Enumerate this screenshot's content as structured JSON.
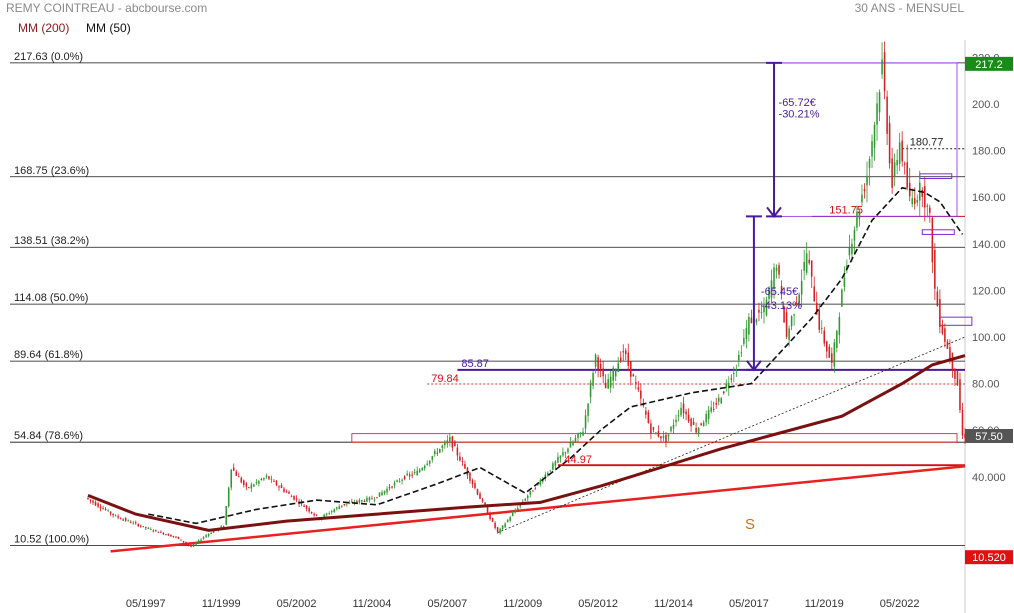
{
  "header": {
    "title": "REMY COINTREAU",
    "source": "abcbourse.com",
    "period": "30 ANS - MENSUEL"
  },
  "legend": [
    {
      "label": "MM (200)",
      "color": "#8b1a1a"
    },
    {
      "label": "MM (50)",
      "color": "#111111"
    }
  ],
  "chart_data": {
    "type": "candlestick",
    "title": "REMY COINTREAU",
    "subtitle": "30 ANS - MENSUEL",
    "ylim": [
      0,
      224
    ],
    "y_ticks": [
      40,
      60,
      80,
      100,
      120,
      140,
      160,
      180,
      200,
      220
    ],
    "y_tick_labels": [
      "40.000",
      "60.00",
      "80.00",
      "100.00",
      "120.00",
      "140.00",
      "160.00",
      "180.00",
      "200.0",
      "220.0"
    ],
    "x_ticks": [
      "05/1997",
      "11/1999",
      "05/2002",
      "11/2004",
      "05/2007",
      "11/2009",
      "05/2012",
      "11/2014",
      "05/2017",
      "11/2019",
      "05/2022"
    ],
    "x_range": [
      "1995-06",
      "2024-07"
    ],
    "price_badges": [
      {
        "value": "217.2",
        "color": "#1a8a1a",
        "y": 217.2
      },
      {
        "value": "57.50",
        "color": "#555555",
        "y": 57.5
      },
      {
        "value": "10.520",
        "color": "#e01010",
        "y": 5.5
      }
    ],
    "fibonacci": [
      {
        "label": "217.63  (0.0%)",
        "value": 217.63
      },
      {
        "label": "168.75  (23.6%)",
        "value": 168.75
      },
      {
        "label": "138.51  (38.2%)",
        "value": 138.51
      },
      {
        "label": "114.08  (50.0%)",
        "value": 114.08
      },
      {
        "label": "89.64  (61.8%)",
        "value": 89.64
      },
      {
        "label": "54.84  (78.6%)",
        "value": 54.84
      },
      {
        "label": "10.52  (100.0%)",
        "value": 10.52
      }
    ],
    "annotations": {
      "level_151": "151.75",
      "level_180": "180.77",
      "level_85": "85.87",
      "level_80": "79.84",
      "level_45": "44.97",
      "drop_abs": "-65.72€",
      "drop_pct": "-30.21%",
      "drop2_abs": "-65.45€",
      "drop2_pct": "-43.13%",
      "support_label": "S"
    },
    "anchors": [
      [
        "1995-06",
        31
      ],
      [
        "1996-06",
        23
      ],
      [
        "1997-06",
        18
      ],
      [
        "1998-06",
        14
      ],
      [
        "1998-12",
        10
      ],
      [
        "1999-06",
        15
      ],
      [
        "2000-01",
        19
      ],
      [
        "2000-04",
        44
      ],
      [
        "2000-10",
        35
      ],
      [
        "2001-06",
        40
      ],
      [
        "2002-06",
        30
      ],
      [
        "2003-03",
        22
      ],
      [
        "2003-12",
        28
      ],
      [
        "2005-01",
        31
      ],
      [
        "2006-01",
        40
      ],
      [
        "2006-06",
        42
      ],
      [
        "2007-01",
        50
      ],
      [
        "2007-07",
        56
      ],
      [
        "2008-06",
        33
      ],
      [
        "2009-02",
        16
      ],
      [
        "2009-10",
        27
      ],
      [
        "2010-06",
        37
      ],
      [
        "2011-04",
        50
      ],
      [
        "2011-12",
        60
      ],
      [
        "2012-05",
        92
      ],
      [
        "2012-09",
        78
      ],
      [
        "2013-04",
        94
      ],
      [
        "2013-09",
        79
      ],
      [
        "2014-03",
        60
      ],
      [
        "2014-09",
        56
      ],
      [
        "2015-03",
        70
      ],
      [
        "2015-09",
        60
      ],
      [
        "2016-06",
        73
      ],
      [
        "2017-01",
        88
      ],
      [
        "2017-06",
        107
      ],
      [
        "2017-12",
        111
      ],
      [
        "2018-05",
        132
      ],
      [
        "2018-09",
        100
      ],
      [
        "2019-02",
        120
      ],
      [
        "2019-05",
        136
      ],
      [
        "2019-10",
        105
      ],
      [
        "2020-03",
        88
      ],
      [
        "2020-09",
        134
      ],
      [
        "2021-05",
        170
      ],
      [
        "2021-09",
        200
      ],
      [
        "2021-11",
        217
      ],
      [
        "2022-03",
        165
      ],
      [
        "2022-06",
        184
      ],
      [
        "2022-10",
        158
      ],
      [
        "2023-03",
        164
      ],
      [
        "2023-06",
        150
      ],
      [
        "2023-08",
        120
      ],
      [
        "2023-10",
        107
      ],
      [
        "2024-01",
        95
      ],
      [
        "2024-05",
        80
      ],
      [
        "2024-07",
        57.5
      ]
    ],
    "ma200": [
      [
        "1995-06",
        32
      ],
      [
        "1997-01",
        24
      ],
      [
        "1999-06",
        17
      ],
      [
        "2002-01",
        21
      ],
      [
        "2005-01",
        24
      ],
      [
        "2008-01",
        27
      ],
      [
        "2010-06",
        29
      ],
      [
        "2012-06",
        36
      ],
      [
        "2014-06",
        44
      ],
      [
        "2016-06",
        52
      ],
      [
        "2018-06",
        59
      ],
      [
        "2020-06",
        66
      ],
      [
        "2022-06",
        80
      ],
      [
        "2023-06",
        88
      ],
      [
        "2024-07",
        92
      ]
    ],
    "ma50": [
      [
        "1997-06",
        24
      ],
      [
        "1999-01",
        20
      ],
      [
        "2001-01",
        26
      ],
      [
        "2003-01",
        30
      ],
      [
        "2005-01",
        28
      ],
      [
        "2007-01",
        37
      ],
      [
        "2008-06",
        44
      ],
      [
        "2009-12",
        33
      ],
      [
        "2011-06",
        48
      ],
      [
        "2012-06",
        60
      ],
      [
        "2013-06",
        70
      ],
      [
        "2015-06",
        76
      ],
      [
        "2017-06",
        80
      ],
      [
        "2018-06",
        94
      ],
      [
        "2019-06",
        108
      ],
      [
        "2020-06",
        125
      ],
      [
        "2021-06",
        150
      ],
      [
        "2022-06",
        164
      ],
      [
        "2023-03",
        162
      ],
      [
        "2023-09",
        158
      ],
      [
        "2024-06",
        144
      ]
    ],
    "trendlines": [
      {
        "from": [
          "1996-03",
          8
        ],
        "to": [
          "2024-07",
          44.5
        ],
        "color": "#e82020",
        "width": 2.5
      },
      {
        "from": [
          "2009-01",
          16
        ],
        "to": [
          "2024-07",
          100
        ],
        "color": "#222222",
        "width": 0.8,
        "dash": "2,2"
      }
    ],
    "hlines": [
      {
        "value": 44.97,
        "from": "2011-01",
        "color": "#d01010",
        "width": 1.8
      },
      {
        "value": 85.87,
        "from": "2007-09",
        "color": "#4a1a9a",
        "width": 2
      },
      {
        "value": 79.84,
        "from": "2006-09",
        "color": "#e03030",
        "width": 1,
        "dash": "2,2"
      },
      {
        "value": 151.75,
        "from": "2019-06",
        "color": "#d01010",
        "width": 1
      },
      {
        "value": 180.77,
        "from": "2022-06",
        "color": "#222222",
        "width": 1,
        "dash": "2,2"
      }
    ]
  }
}
